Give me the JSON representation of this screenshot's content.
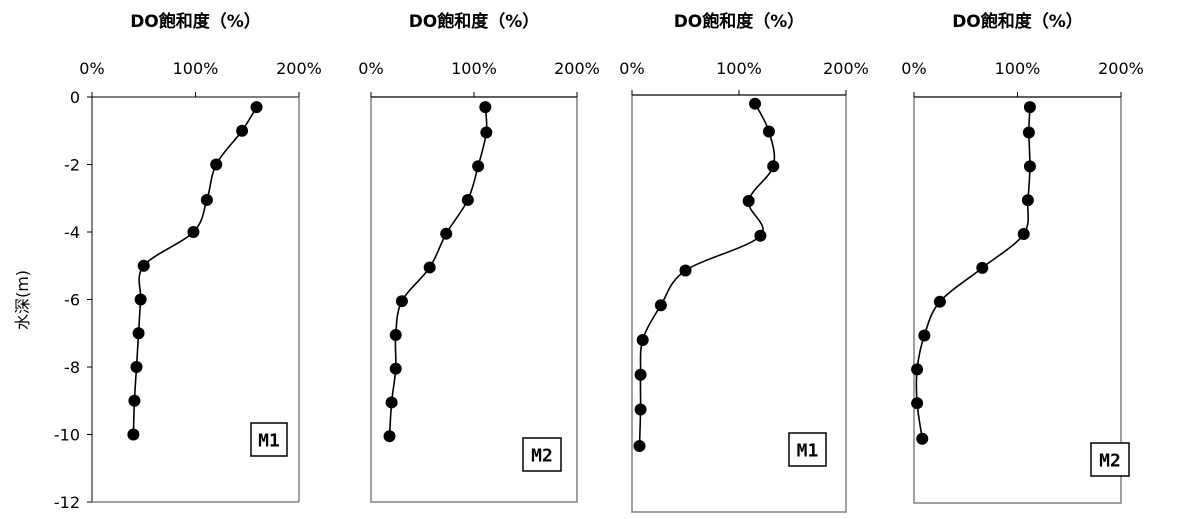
{
  "chart_data": [
    {
      "type": "line",
      "panel_label": "M1",
      "title": "DO飽和度（%）",
      "xlabel": "DO飽和度（%）",
      "ylabel": "水深(m)",
      "xlim": [
        0,
        200
      ],
      "ylim": [
        -12,
        0
      ],
      "x_tick_labels": [
        "0%",
        "100%",
        "200%"
      ],
      "y_tick_labels": [
        "0",
        "-2",
        "-4",
        "-6",
        "-8",
        "-10",
        "-12"
      ],
      "series": [
        {
          "x": [
            159,
            145,
            120,
            111,
            98,
            50,
            47,
            45,
            43,
            41,
            40
          ],
          "y": [
            -0.3,
            -1,
            -2,
            -3.05,
            -4,
            -5,
            -6,
            -7,
            -8,
            -9,
            -10
          ]
        }
      ]
    },
    {
      "type": "line",
      "panel_label": "M2",
      "title": "DO飽和度（%）",
      "xlabel": "DO飽和度（%）",
      "xlim": [
        0,
        200
      ],
      "ylim": [
        -12,
        0
      ],
      "x_tick_labels": [
        "0%",
        "100%",
        "200%"
      ],
      "series": [
        {
          "x": [
            111,
            112,
            104,
            94,
            73,
            57,
            30,
            24,
            24,
            20,
            18
          ],
          "y": [
            -0.3,
            -1.05,
            -2.05,
            -3.05,
            -4.05,
            -5.05,
            -6.05,
            -7.05,
            -8.05,
            -9.05,
            -10.05
          ]
        }
      ]
    },
    {
      "type": "line",
      "panel_label": "M1",
      "title": "DO飽和度（%）",
      "xlabel": "DO飽和度（%）",
      "xlim": [
        0,
        200
      ],
      "ylim": [
        -12,
        0
      ],
      "x_tick_labels": [
        "0%",
        "100%",
        "200%"
      ],
      "series": [
        {
          "x": [
            115,
            128,
            132,
            109,
            120,
            50,
            27,
            10,
            8,
            8,
            7
          ],
          "y": [
            -0.25,
            -1.05,
            -2.05,
            -3.05,
            -4.05,
            -5.05,
            -6.05,
            -7.05,
            -8.05,
            -9.05,
            -10.1
          ]
        }
      ]
    },
    {
      "type": "line",
      "panel_label": "M2",
      "title": "DO飽和度（%）",
      "xlabel": "DO飽和度（%）",
      "xlim": [
        0,
        200
      ],
      "ylim": [
        -12,
        0
      ],
      "x_tick_labels": [
        "0%",
        "100%",
        "200%"
      ],
      "series": [
        {
          "x": [
            112,
            111,
            112,
            110,
            106,
            66,
            25,
            10,
            3,
            3,
            8
          ],
          "y": [
            -0.3,
            -1.05,
            -2.05,
            -3.05,
            -4.05,
            -5.05,
            -6.05,
            -7.05,
            -8.05,
            -9.05,
            -10.1
          ]
        }
      ]
    }
  ]
}
